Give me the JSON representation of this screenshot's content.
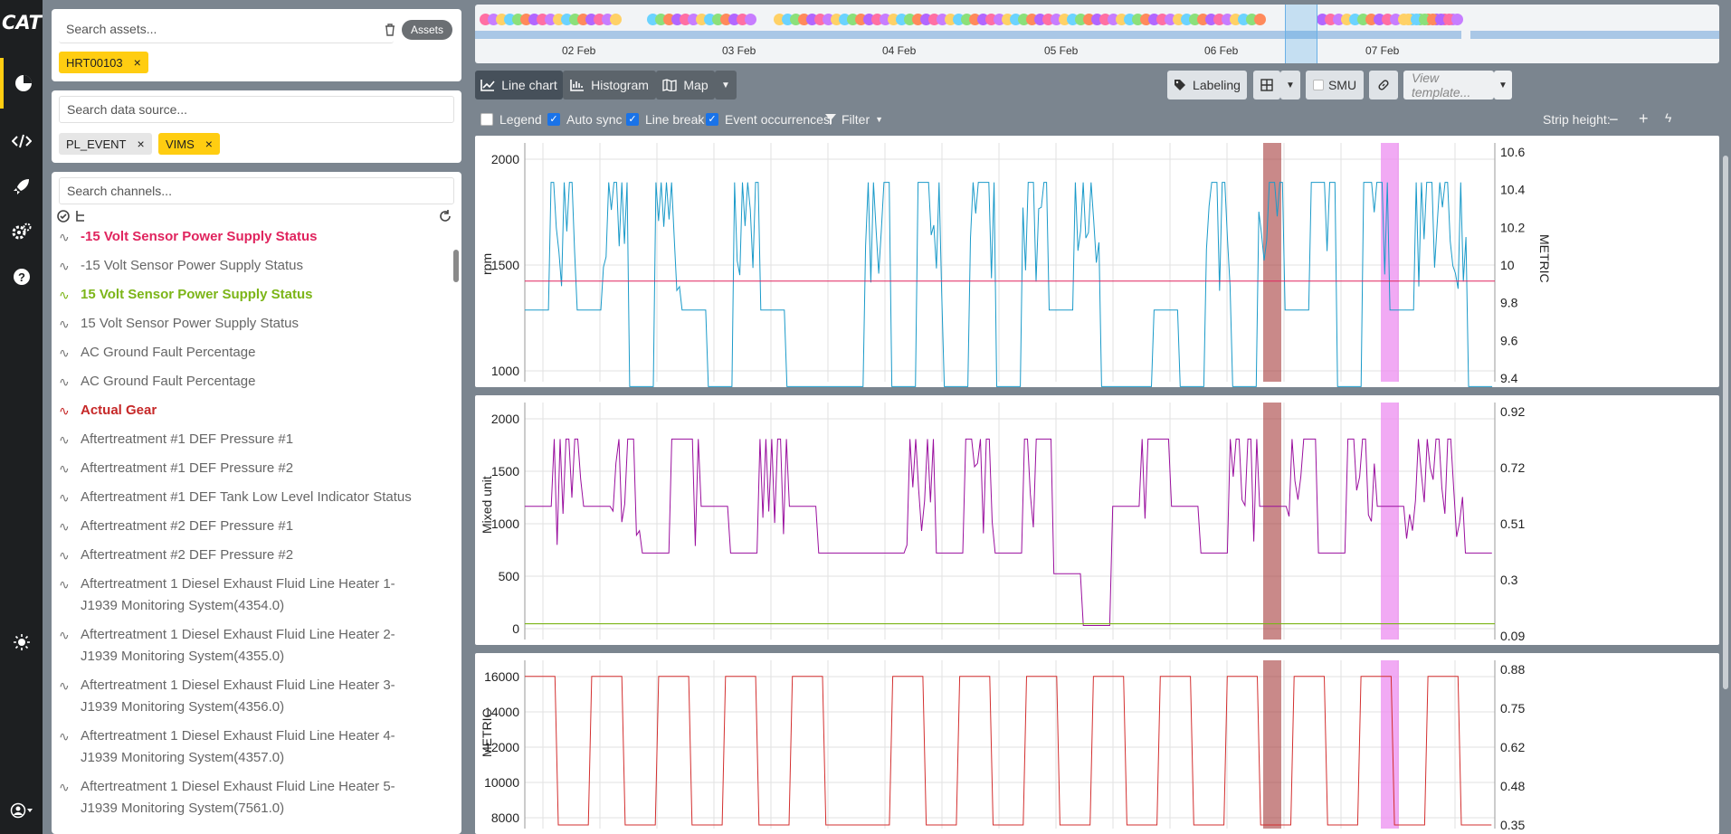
{
  "rail": {
    "items": [
      "dashboard-icon",
      "code-icon",
      "rocket-icon",
      "settings-icon",
      "help-icon"
    ]
  },
  "assets": {
    "search_placeholder": "Search assets...",
    "button": "Assets",
    "selected": "HRT00103"
  },
  "datasource": {
    "search_placeholder": "Search data source...",
    "tags": [
      "PL_EVENT",
      "VIMS"
    ]
  },
  "channels": {
    "search_placeholder": "Search channels...",
    "items": [
      {
        "label": "-15 Volt Sensor Power Supply Status",
        "style": "red"
      },
      {
        "label": "-15 Volt Sensor Power Supply Status",
        "style": "normal"
      },
      {
        "label": "15 Volt Sensor Power Supply Status",
        "style": "green"
      },
      {
        "label": "15 Volt Sensor Power Supply Status",
        "style": "normal"
      },
      {
        "label": "AC Ground Fault Percentage",
        "style": "normal"
      },
      {
        "label": "AC Ground Fault Percentage",
        "style": "normal"
      },
      {
        "label": "Actual Gear",
        "style": "dark"
      },
      {
        "label": "Aftertreatment #1 DEF Pressure #1",
        "style": "normal"
      },
      {
        "label": "Aftertreatment #1 DEF Pressure #2",
        "style": "normal"
      },
      {
        "label": "Aftertreatment #1 DEF Tank Low Level Indicator Status",
        "style": "normal"
      },
      {
        "label": "Aftertreatment #2 DEF Pressure #1",
        "style": "normal"
      },
      {
        "label": "Aftertreatment #2 DEF Pressure #2",
        "style": "normal"
      },
      {
        "label": "Aftertreatment 1 Diesel Exhaust Fluid Line Heater 1-",
        "label2": "J1939 Monitoring System(4354.0)",
        "style": "normal"
      },
      {
        "label": "Aftertreatment 1 Diesel Exhaust Fluid Line Heater 2-",
        "label2": "J1939 Monitoring System(4355.0)",
        "style": "normal"
      },
      {
        "label": "Aftertreatment 1 Diesel Exhaust Fluid Line Heater 3-",
        "label2": "J1939 Monitoring System(4356.0)",
        "style": "normal"
      },
      {
        "label": "Aftertreatment 1 Diesel Exhaust Fluid Line Heater 4-",
        "label2": "J1939 Monitoring System(4357.0)",
        "style": "normal"
      },
      {
        "label": "Aftertreatment 1 Diesel Exhaust Fluid Line Heater 5-",
        "label2": "J1939 Monitoring System(7561.0)",
        "style": "normal"
      }
    ]
  },
  "timeline": {
    "ticks": [
      "02 Feb",
      "03 Feb",
      "04 Feb",
      "05 Feb",
      "06 Feb",
      "07 Feb"
    ]
  },
  "toolbar": {
    "line_chart": "Line chart",
    "histogram": "Histogram",
    "map": "Map",
    "labeling": "Labeling",
    "smu": "SMU",
    "view_template": "View template..."
  },
  "options": {
    "legend": "Legend",
    "auto_sync": "Auto sync",
    "line_break": "Line break",
    "event_occurrences": "Event occurrences",
    "filter": "Filter",
    "strip_height": "Strip height:"
  },
  "colors": {
    "accent": "#ffcd11",
    "series_rpm": "#1a9ac9",
    "series_mixed": "#9a0f9e",
    "series_metric": "#d32f2f",
    "band_dark": "#a53a3a",
    "band_pink": "#ec8ef0"
  },
  "chart_data": [
    {
      "type": "line",
      "ylabel": "rpm",
      "ylabel_right": "METRIC",
      "y_ticks": [
        "2000",
        "1500",
        "1000"
      ],
      "y_ticks_right": [
        "10.6",
        "10.4",
        "10.2",
        "10",
        "9.8",
        "9.6",
        "9.4"
      ],
      "ylim": [
        750,
        2100
      ],
      "ylim_right": [
        9.4,
        10.6
      ],
      "series": [
        {
          "values": [
            1150,
            1900,
            1150,
            1900,
            700,
            1900,
            1150,
            700,
            1900,
            1150,
            700,
            700,
            700,
            1900,
            700,
            1900,
            700,
            1900,
            700,
            1900,
            1150,
            1900,
            700,
            700,
            1150,
            700,
            1900,
            700,
            1900,
            1150,
            1900,
            700,
            1900,
            1150,
            1900,
            1900,
            700
          ]
        }
      ]
    },
    {
      "type": "line",
      "ylabel": "Mixed unit",
      "y_ticks": [
        "2000",
        "1500",
        "1000",
        "500",
        "0"
      ],
      "y_ticks_right": [
        "0.92",
        "0.72",
        "0.51",
        "0.3",
        "0.09"
      ],
      "ylim": [
        -100,
        2100
      ],
      "series": [
        {
          "values": [
            1150,
            1800,
            1150,
            1800,
            700,
            1800,
            1150,
            700,
            1800,
            1150,
            700,
            700,
            700,
            1800,
            700,
            1800,
            700,
            1800,
            500,
            0,
            1150,
            1800,
            1150,
            700,
            1800,
            1150,
            1800,
            700,
            1800,
            1150,
            1800,
            1800,
            700
          ]
        }
      ]
    },
    {
      "type": "line",
      "ylabel": "METRIC",
      "y_ticks": [
        "16000",
        "14000",
        "12000",
        "10000",
        "8000"
      ],
      "y_ticks_right": [
        "0.88",
        "0.75",
        "0.62",
        "0.48",
        "0.35"
      ],
      "ylim": [
        8000,
        17000
      ],
      "series": [
        {
          "values": [
            16400,
            8000,
            16400,
            8000,
            16400,
            8000,
            16400,
            8000,
            16400,
            8000,
            8000,
            16400,
            8000,
            16400,
            8000,
            16400,
            8000,
            16400,
            8000,
            16400,
            8000,
            16400,
            8000,
            16400,
            8000,
            16400,
            8000,
            16400,
            8000
          ]
        }
      ]
    }
  ]
}
